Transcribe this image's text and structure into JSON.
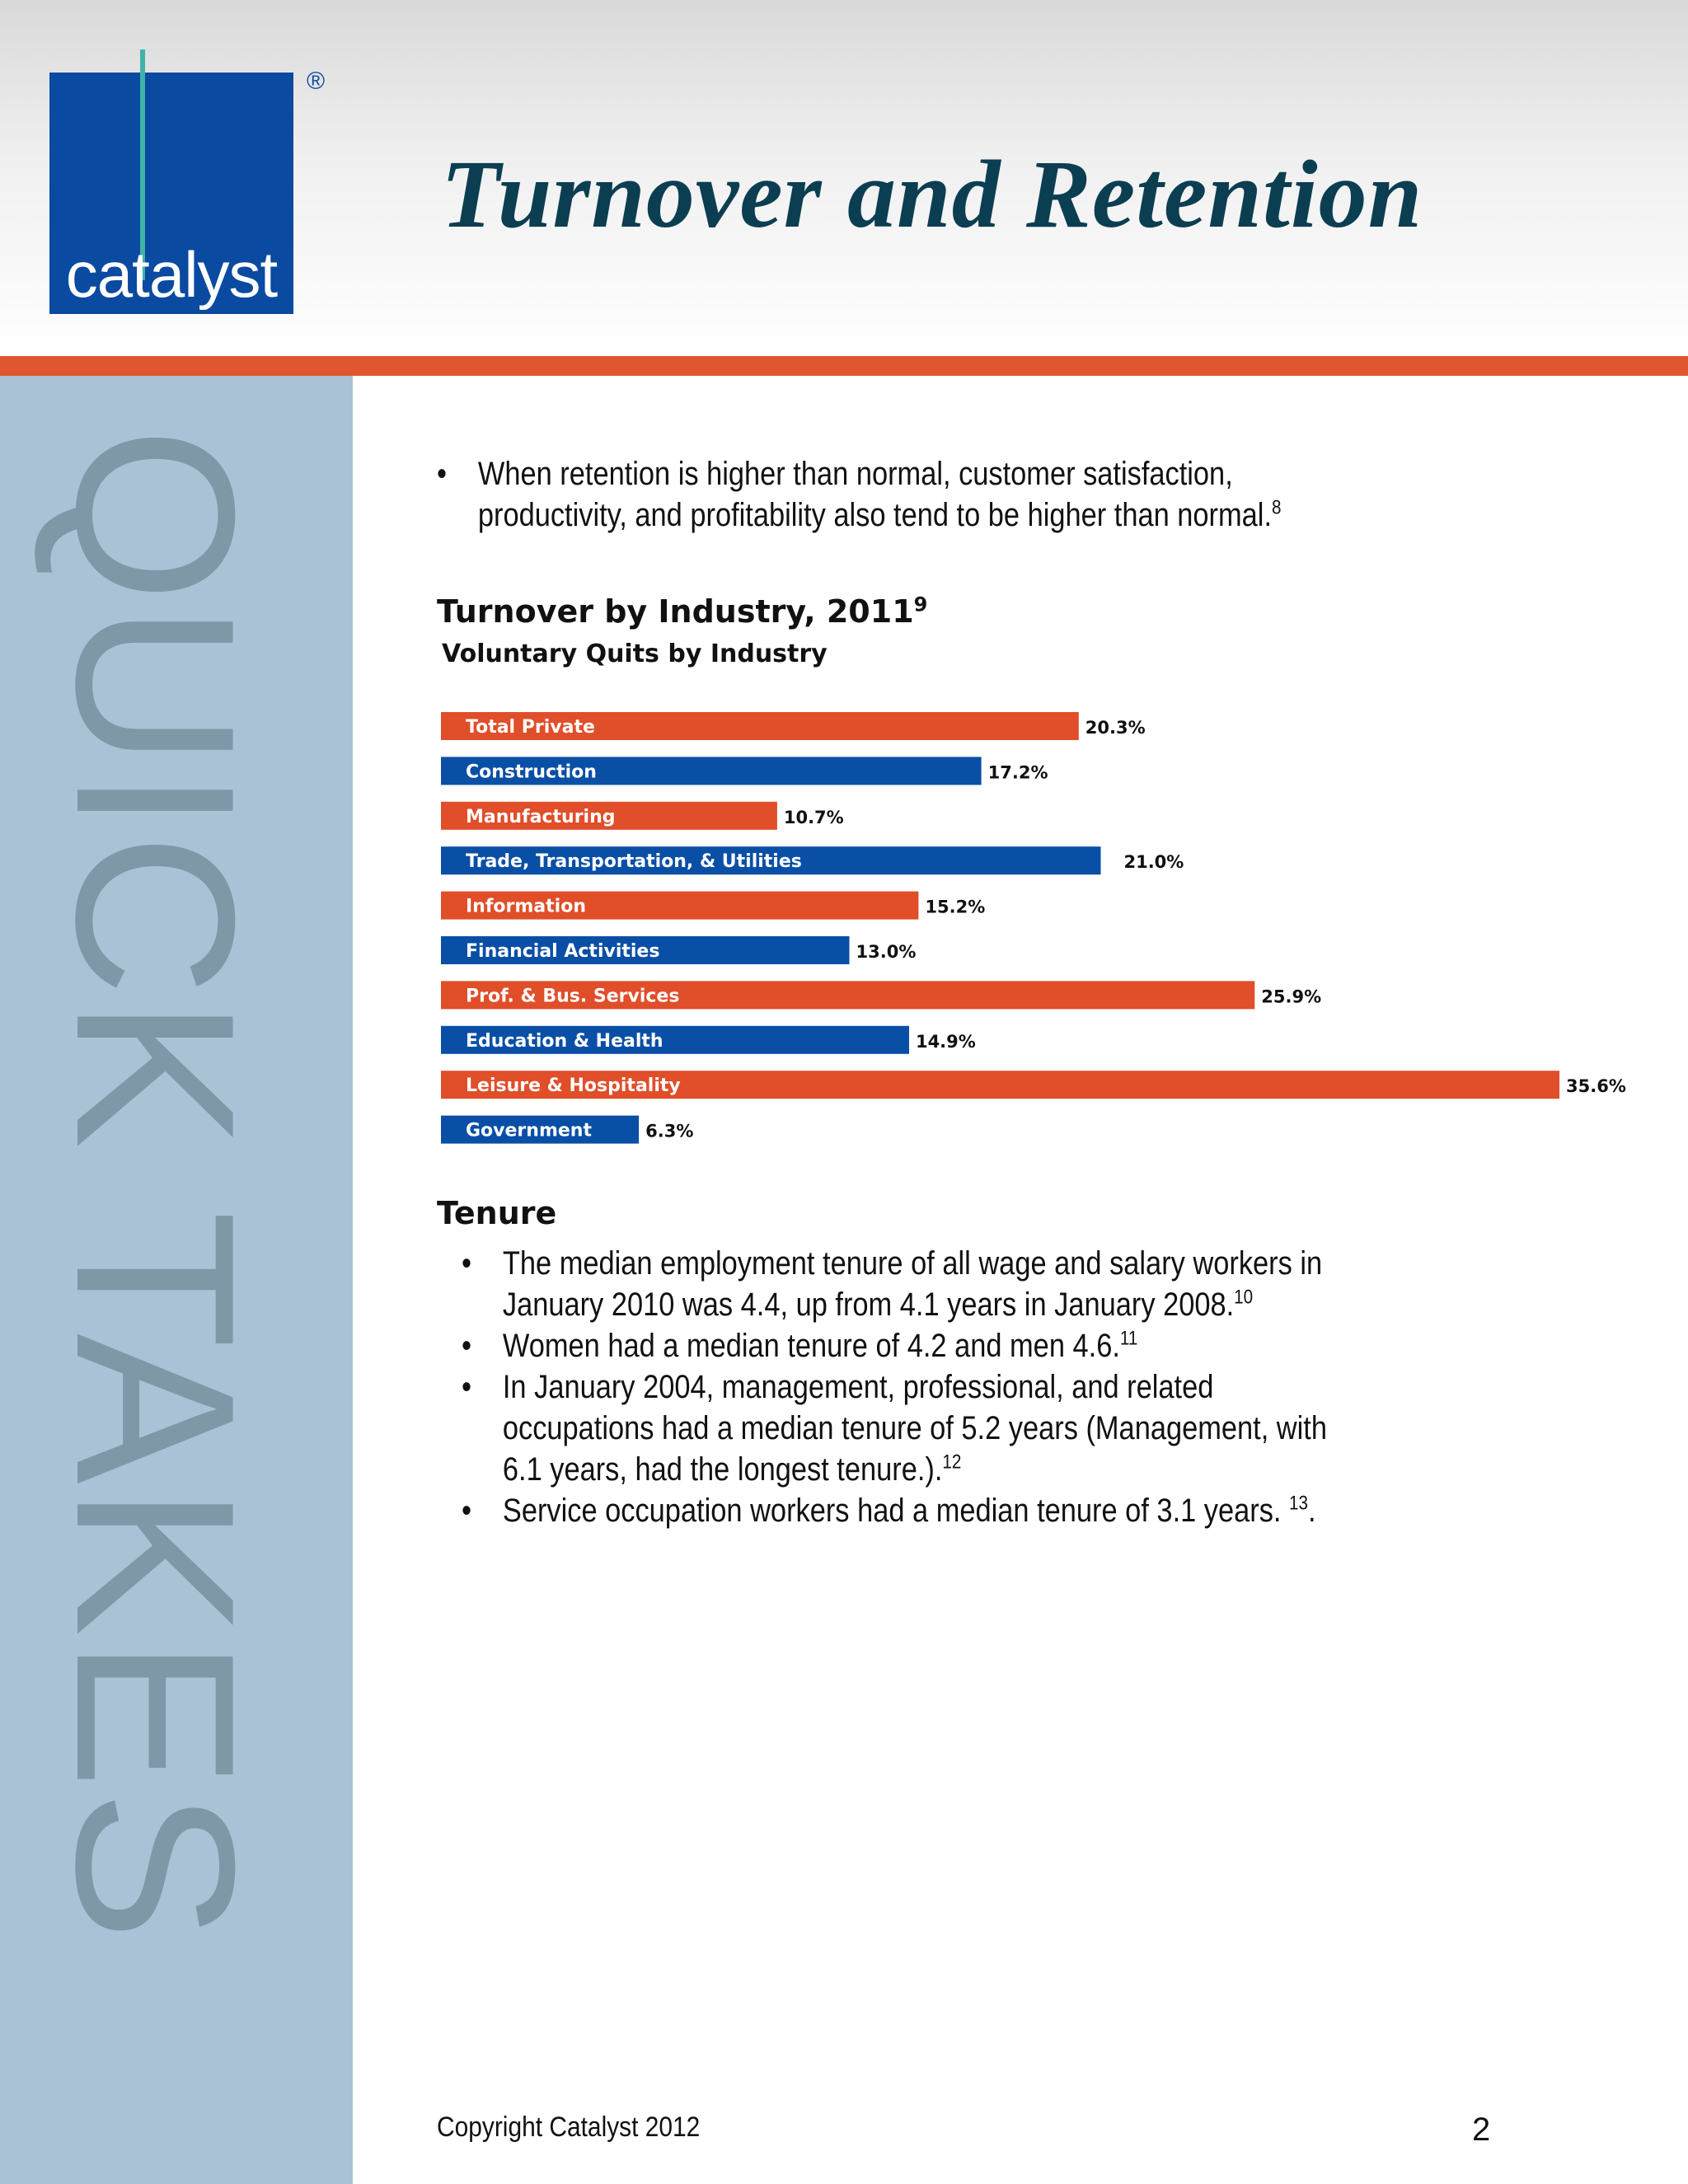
{
  "logo": {
    "text": "catalyst",
    "registered": "®"
  },
  "header": {
    "title": "Turnover and Retention"
  },
  "sidebar": {
    "text": "QUICK TAKES"
  },
  "intro_bullets": [
    {
      "text": "When retention is higher than normal, customer satisfaction, productivity, and profitability also tend to be higher than normal.",
      "ref": "8"
    }
  ],
  "chart_section": {
    "title": "Turnover by Industry, 2011",
    "ref": "9"
  },
  "chart_data": {
    "type": "bar",
    "orientation": "horizontal",
    "title": "Voluntary Quits by Industry",
    "categories": [
      "Total Private",
      "Construction",
      "Manufacturing",
      "Trade, Transportation, & Utilities",
      "Information",
      "Financial Activities",
      "Prof. & Bus. Services",
      "Education & Health",
      "Leisure & Hospitality",
      "Government"
    ],
    "values": [
      20.3,
      17.2,
      10.7,
      21.0,
      15.2,
      13.0,
      25.9,
      14.9,
      35.6,
      6.3
    ],
    "value_labels": [
      "20.3%",
      "17.2%",
      "10.7%",
      "21.0%",
      "15.2%",
      "13.0%",
      "25.9%",
      "14.9%",
      "35.6%",
      "6.3%"
    ],
    "colors": [
      "#e04e2a",
      "#0a4fa6",
      "#e04e2a",
      "#0a4fa6",
      "#e04e2a",
      "#0a4fa6",
      "#e04e2a",
      "#0a4fa6",
      "#e04e2a",
      "#0a4fa6"
    ],
    "xlim": [
      0,
      35.6
    ],
    "grid": false,
    "legend": "none"
  },
  "tenure": {
    "heading": "Tenure",
    "bullets": [
      {
        "text": "The median employment tenure of all wage and salary workers in January 2010 was 4.4, up from 4.1 years in January 2008.",
        "ref": "10",
        "after": ""
      },
      {
        "text": "Women had a median tenure of 4.2 and men 4.6.",
        "ref": "11",
        "after": ""
      },
      {
        "text": "In January 2004, management, professional, and related occupations had a median tenure of 5.2 years (Management, with 6.1 years, had the longest tenure.).",
        "ref": "12",
        "after": ""
      },
      {
        "text": "Service occupation workers had a median tenure of 3.1 years. ",
        "ref": "13",
        "after": "."
      }
    ]
  },
  "footer": {
    "copyright": "Copyright Catalyst 2012",
    "page": "2"
  },
  "bullet_char": "•"
}
